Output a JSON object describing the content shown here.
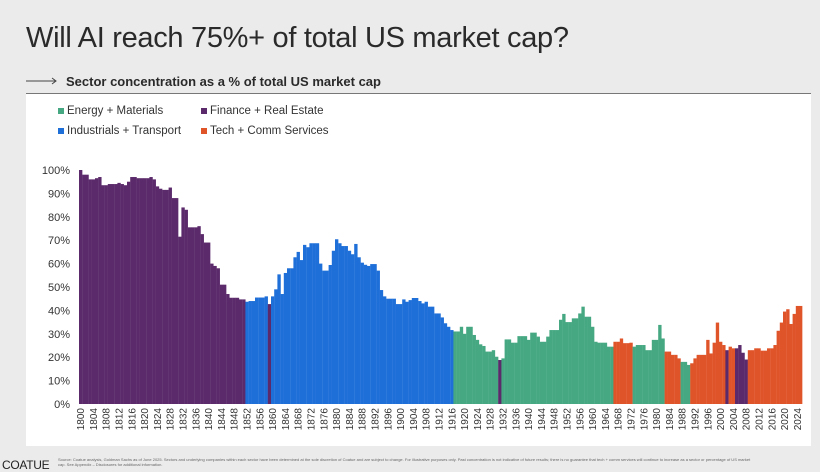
{
  "title": "Will AI reach 75%+ of total US market cap?",
  "subtitle": "Sector concentration as a % of total US market cap",
  "footer": {
    "logo": "COATUE",
    "note": "Source: Coatue analysis, Goldman Sachs as of June 2025. Sectors and underlying companies within each sector have been determined at the sole discretion of Coatue and are subject to change. For illustrative purposes only. Past concentration is not indicative of future results; there is no guarantee that tech + comm services will continue to increase as a sector or percentage of US market cap. See Appendix – Disclosures for additional information."
  },
  "chart_data": {
    "type": "bar",
    "ylabel": "",
    "xlabel": "",
    "ylim": [
      0,
      100
    ],
    "yticks": [
      "0%",
      "10%",
      "20%",
      "30%",
      "40%",
      "50%",
      "60%",
      "70%",
      "80%",
      "90%",
      "100%"
    ],
    "xticks": [
      "1800",
      "1804",
      "1808",
      "1812",
      "1816",
      "1820",
      "1824",
      "1828",
      "1832",
      "1836",
      "1840",
      "1844",
      "1848",
      "1852",
      "1856",
      "1860",
      "1864",
      "1868",
      "1872",
      "1876",
      "1880",
      "1884",
      "1888",
      "1892",
      "1896",
      "1900",
      "1904",
      "1908",
      "1912",
      "1916",
      "1920",
      "1924",
      "1928",
      "1932",
      "1936",
      "1940",
      "1944",
      "1948",
      "1952",
      "1956",
      "1960",
      "1964",
      "1968",
      "1972",
      "1976",
      "1980",
      "1984",
      "1988",
      "1992",
      "1996",
      "2000",
      "2004",
      "2008",
      "2012",
      "2016",
      "2020",
      "2024"
    ],
    "xrange": [
      1800,
      2025
    ],
    "grid": false,
    "legend_position": "top-left",
    "legend": [
      {
        "name": "Energy + Materials",
        "color": "#45a882"
      },
      {
        "name": "Finance + Real Estate",
        "color": "#5b2a6b"
      },
      {
        "name": "Industrials + Transport",
        "color": "#1f6fd9"
      },
      {
        "name": "Tech + Comm Services",
        "color": "#e0542a"
      }
    ],
    "segments": [
      {
        "sector": "Finance + Real Estate",
        "start": 1800,
        "values": [
          100,
          98,
          98,
          96,
          96,
          96.5,
          97,
          93.5,
          93.5,
          94,
          94,
          94,
          94.5,
          94,
          93.5,
          95,
          97,
          97,
          96.5,
          96.5,
          96.5,
          96.5,
          97,
          96,
          93,
          92,
          91.5,
          91.5,
          92.5,
          88,
          88,
          71.5,
          84,
          83,
          75.5,
          75.5,
          75.5,
          76,
          72.6,
          69,
          69,
          60,
          59,
          58,
          51,
          51,
          47,
          45.4,
          45.4,
          45.4,
          44.7,
          44.7
        ]
      },
      {
        "sector": "Industrials + Transport",
        "start": 1852,
        "values": [
          43.7,
          44,
          44,
          45.5,
          45.5,
          45.5,
          46
        ]
      },
      {
        "sector": "Finance + Real Estate",
        "start": 1859,
        "values": [
          42.7
        ]
      },
      {
        "sector": "Industrials + Transport",
        "start": 1860,
        "values": [
          46,
          49,
          55.4,
          47,
          56,
          58,
          58,
          62.7,
          65,
          61.5,
          68,
          67,
          68.7,
          68.7,
          68.7,
          60,
          57,
          57,
          59.4,
          65.5,
          70.4,
          68.7,
          67.5,
          67.5,
          65.5,
          64,
          68.4,
          62.7,
          60.4,
          59.5,
          59,
          59.8,
          59.8,
          57,
          48.7,
          46,
          45,
          45,
          45,
          42.7,
          42.7,
          44.7,
          43.7,
          44.4,
          45.3,
          45.3,
          44,
          43,
          43.7,
          41.6,
          41.6,
          38.7,
          38.7,
          37,
          34.5,
          33,
          31.6
        ]
      },
      {
        "sector": "Energy + Materials",
        "start": 1917,
        "values": [
          31,
          31,
          33,
          30,
          33,
          33,
          29.5,
          27.4,
          25.5,
          24.8,
          22.4,
          22.4,
          23,
          20.2
        ]
      },
      {
        "sector": "Finance + Real Estate",
        "start": 1931,
        "values": [
          18.8
        ]
      },
      {
        "sector": "Energy + Materials",
        "start": 1932,
        "values": [
          19.5,
          27.6,
          27.6,
          26.2,
          26.2,
          29,
          29,
          29,
          27.4,
          30.5,
          30.5,
          28.8,
          26.6,
          26.6,
          28.8,
          31.6,
          31.6,
          31.6,
          36,
          38.5,
          35,
          35,
          36.6,
          36.6,
          38.7,
          41.6,
          37.3,
          37.3,
          33,
          26.6,
          26.2,
          26.2,
          26.2,
          24.5,
          24.5
        ]
      },
      {
        "sector": "Tech + Comm Services",
        "start": 1967,
        "values": [
          26.6,
          26.6,
          28,
          26,
          26,
          26.2
        ]
      },
      {
        "sector": "Energy + Materials",
        "start": 1973,
        "values": [
          24.5,
          25.2,
          25.2,
          25.2,
          23,
          23,
          27.4,
          27.4,
          33.8,
          28
        ]
      },
      {
        "sector": "Tech + Comm Services",
        "start": 1983,
        "values": [
          22.4,
          22.4,
          21,
          21,
          19.5
        ]
      },
      {
        "sector": "Energy + Materials",
        "start": 1988,
        "values": [
          18,
          18,
          16.7
        ]
      },
      {
        "sector": "Tech + Comm Services",
        "start": 1991,
        "values": [
          17.4,
          19.5,
          21,
          21,
          21,
          27.4,
          21.6,
          26.2,
          34.8,
          26.6,
          25.2
        ]
      },
      {
        "sector": "Finance + Real Estate",
        "start": 2002,
        "values": [
          23
        ]
      },
      {
        "sector": "Tech + Comm Services",
        "start": 2003,
        "values": [
          24.5,
          23.8
        ]
      },
      {
        "sector": "Finance + Real Estate",
        "start": 2005,
        "values": [
          23.8,
          25.2,
          21.9,
          19
        ]
      },
      {
        "sector": "Tech + Comm Services",
        "start": 2009,
        "values": [
          23,
          23,
          23.8,
          23.8,
          22.8,
          22.8,
          23.8,
          23.8,
          25.2,
          31.3,
          34.8,
          39.5,
          40.5,
          34.2,
          38.5,
          41.9,
          41.9
        ]
      }
    ]
  }
}
